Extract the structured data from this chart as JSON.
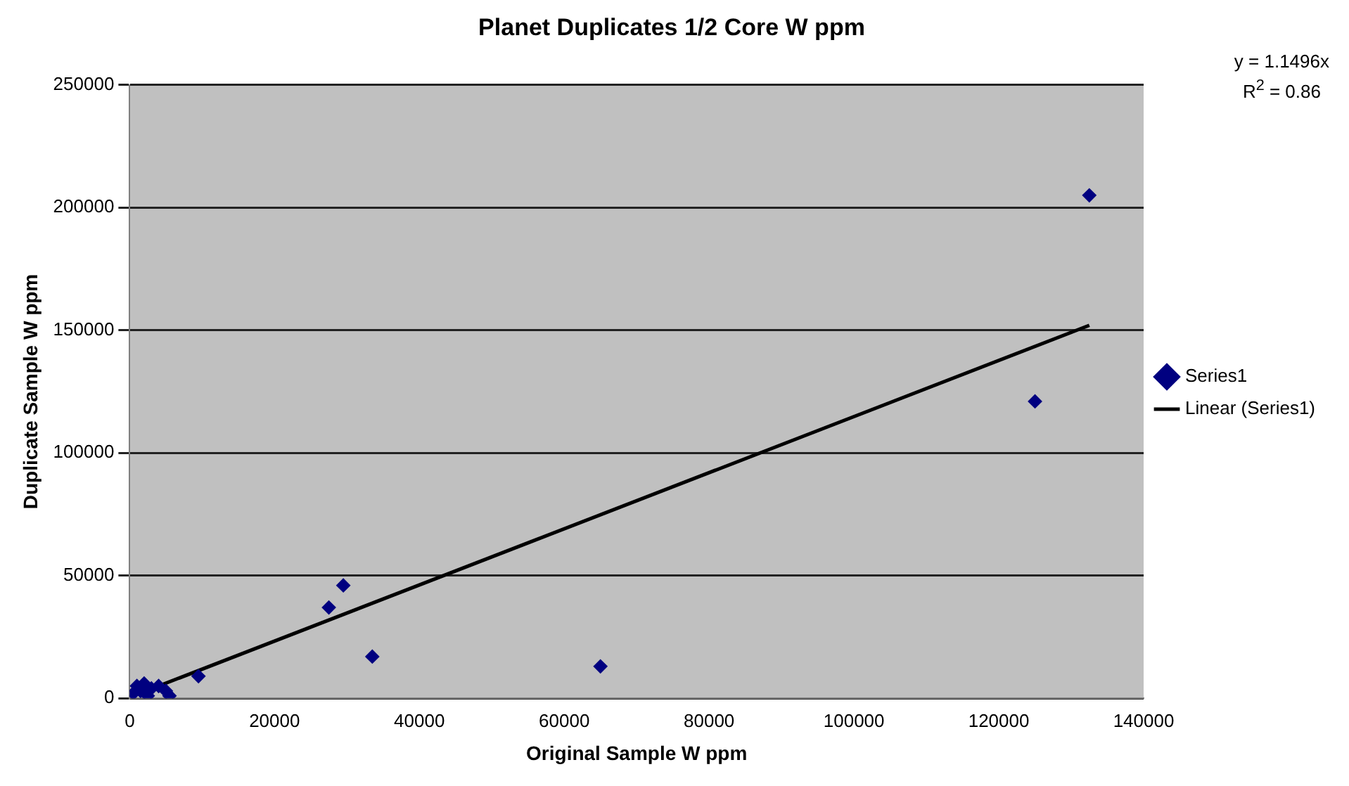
{
  "chart_data": {
    "type": "scatter",
    "title": "Planet Duplicates 1/2 Core W ppm",
    "xlabel": "Original Sample W ppm",
    "ylabel": "Duplicate Sample W ppm",
    "series": [
      {
        "name": "Series1",
        "color": "#000080",
        "x": [
          500,
          1000,
          1500,
          2000,
          2500,
          3000,
          4000,
          5000,
          5500,
          9500,
          27500,
          29500,
          33500,
          65000,
          125000,
          132500
        ],
        "values": [
          2000,
          5000,
          3000,
          6000,
          1000,
          4000,
          5000,
          3000,
          1000,
          9000,
          37000,
          46000,
          17000,
          13000,
          121000,
          205000
        ]
      },
      {
        "name": "Linear (Series1)",
        "type": "line",
        "color": "#000000",
        "marker": "none",
        "x": [
          500,
          132500
        ],
        "values": [
          1000,
          152000
        ]
      }
    ],
    "xlim": [
      0,
      140000
    ],
    "xticks": [
      0,
      20000,
      40000,
      60000,
      80000,
      100000,
      120000,
      140000
    ],
    "ylim": [
      0,
      250000
    ],
    "yticks": [
      0,
      50000,
      100000,
      150000,
      200000,
      250000
    ],
    "grid": "y",
    "legend": "right",
    "marker": "diamond",
    "annotations": [
      "y = 1.1496x",
      "R$^{2}$ = 0.86"
    ]
  }
}
